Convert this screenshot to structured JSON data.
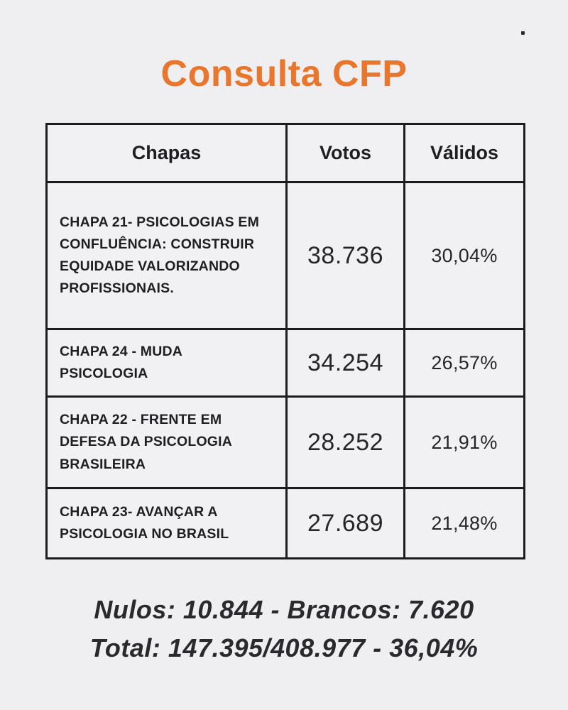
{
  "page": {
    "background_color": "#efeff1",
    "text_color": "#212125"
  },
  "title": {
    "text": "Consulta CFP",
    "color": "#e8762c"
  },
  "table": {
    "headers": [
      {
        "label": "Chapas"
      },
      {
        "label": "Votos"
      },
      {
        "label": "Válidos"
      }
    ],
    "rows": [
      {
        "chapa": "CHAPA 21- PSICOLOGIAS EM CONFLUÊNCIA: CONSTRUIR EQUIDADE VALORIZANDO PROFISSIONAIS.",
        "votos": "38.736",
        "validos": "30,04%"
      },
      {
        "chapa": "CHAPA 24 - MUDA PSICOLOGIA",
        "votos": "34.254",
        "validos": "26,57%"
      },
      {
        "chapa": "CHAPA 22 - FRENTE EM DEFESA DA PSICOLOGIA BRASILEIRA",
        "votos": "28.252",
        "validos": "21,91%"
      },
      {
        "chapa": "CHAPA 23- AVANÇAR A PSICOLOGIA NO BRASIL",
        "votos": "27.689",
        "validos": "21,48%"
      }
    ]
  },
  "footer": {
    "line1": "Nulos: 10.844 - Brancos: 7.620",
    "line2": "Total: 147.395/408.977 - 36,04%"
  }
}
